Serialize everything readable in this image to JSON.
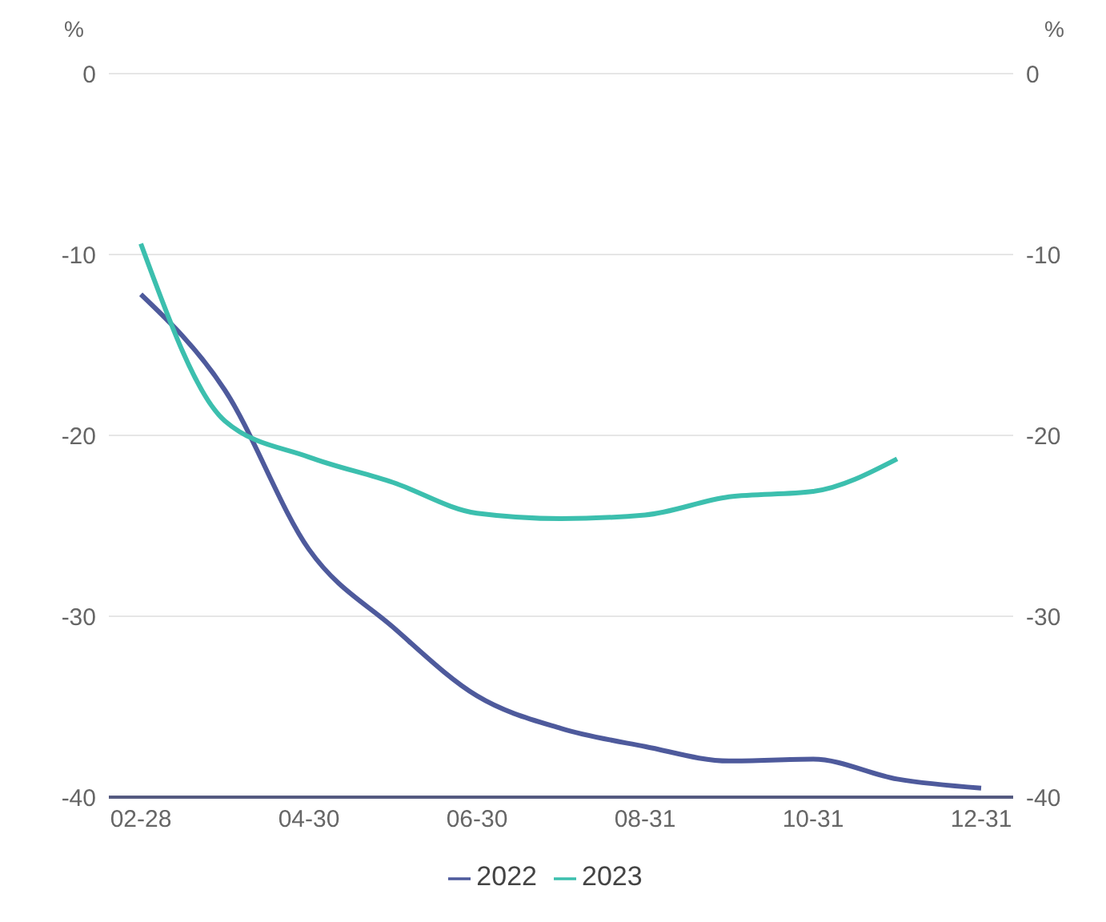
{
  "chart_data": {
    "type": "line",
    "ylabel": "%",
    "y2label": "%",
    "categories": [
      "02-28",
      null,
      "04-30",
      null,
      "06-30",
      null,
      "08-31",
      null,
      "10-31",
      null,
      "12-31"
    ],
    "series": [
      {
        "name": "2022",
        "color": "#4e5a9c",
        "values": [
          -12.2,
          -17.5,
          -26.3,
          -30.6,
          -34.4,
          -36.2,
          -37.2,
          -38,
          -37.9,
          -39,
          -39.5
        ]
      },
      {
        "name": "2023",
        "color": "#3cbfae",
        "values": [
          -9.4,
          -19.2,
          -21.2,
          -22.6,
          -24.3,
          -24.6,
          -24.4,
          -23.4,
          -23.1,
          -21.3,
          null
        ]
      }
    ],
    "ylim": [
      -40,
      0
    ],
    "yticks": [
      -40,
      -30,
      -20,
      -10,
      0
    ],
    "y2lim": [
      -40,
      0
    ],
    "y2ticks": [
      -40,
      -30,
      -20,
      -10,
      0
    ],
    "grid": "y",
    "legend": "bottom",
    "marker": "none",
    "line_style": "solid"
  }
}
